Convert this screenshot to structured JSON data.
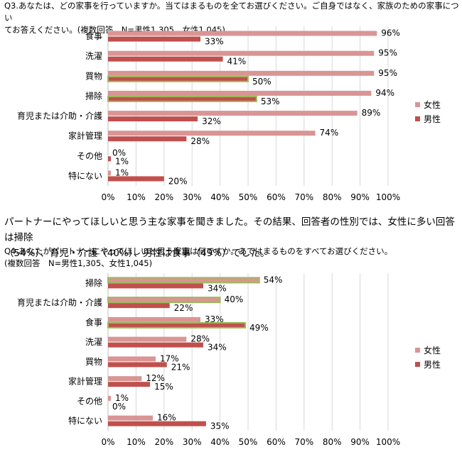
{
  "q3_text": {
    "line1": "Q3.あなたは、どの家事を行っていますか。当てはまるものを全てお選びください。ご自身ではなく、家族のための家事につい",
    "line2": "てお答えください。(複数回答　N=男性1,305、女性1,045)"
  },
  "narrative": {
    "line1": "パートナーにやってほしいと思う主な家事を聞きました。その結果、回答者の性別では、女性に多い回答は掃除",
    "line2": "（54%）、育児・介護（40%）、男性は食事（49%）でした。"
  },
  "q4_text": {
    "line1": "Q4.あなたがパートナーにやってほしいと思う家事は何ですか。あてはまるものをすべてお選びください。",
    "line2": "(複数回答　N=男性1,305、女性1,045)"
  },
  "colors": {
    "female": "#d99594",
    "male": "#c0504d",
    "highlight": "#9bbb59",
    "grid": "#d9d9d9"
  },
  "chart_data": [
    {
      "type": "bar",
      "orientation": "horizontal",
      "categories": [
        "食事",
        "洗濯",
        "買物",
        "掃除",
        "育児または介助・介護",
        "家計管理",
        "その他",
        "特にない"
      ],
      "series": [
        {
          "name": "女性",
          "values": [
            96,
            95,
            95,
            94,
            89,
            74,
            0,
            1
          ]
        },
        {
          "name": "男性",
          "values": [
            33,
            41,
            50,
            53,
            32,
            28,
            1,
            20
          ]
        }
      ],
      "highlighted": [
        {
          "series": "男性",
          "category": "買物"
        },
        {
          "series": "男性",
          "category": "掃除"
        }
      ],
      "xlim": [
        0,
        100
      ],
      "xticks": [
        "0%",
        "10%",
        "20%",
        "30%",
        "40%",
        "50%",
        "60%",
        "70%",
        "80%",
        "90%",
        "100%"
      ],
      "legend": "right",
      "grid": true
    },
    {
      "type": "bar",
      "orientation": "horizontal",
      "categories": [
        "掃除",
        "育児または介助・介護",
        "食事",
        "洗濯",
        "買物",
        "家計管理",
        "その他",
        "特にない"
      ],
      "series": [
        {
          "name": "女性",
          "values": [
            54,
            40,
            33,
            28,
            17,
            12,
            1,
            16
          ]
        },
        {
          "name": "男性",
          "values": [
            34,
            22,
            49,
            34,
            21,
            15,
            0,
            35
          ]
        }
      ],
      "highlighted": [
        {
          "series": "女性",
          "category": "掃除"
        },
        {
          "series": "女性",
          "category": "育児または介助・介護"
        },
        {
          "series": "男性",
          "category": "食事"
        }
      ],
      "xlim": [
        0,
        100
      ],
      "xticks": [
        "0%",
        "10%",
        "20%",
        "30%",
        "40%",
        "50%",
        "60%",
        "70%",
        "80%",
        "90%",
        "100%"
      ],
      "legend": "right",
      "grid": true
    }
  ]
}
